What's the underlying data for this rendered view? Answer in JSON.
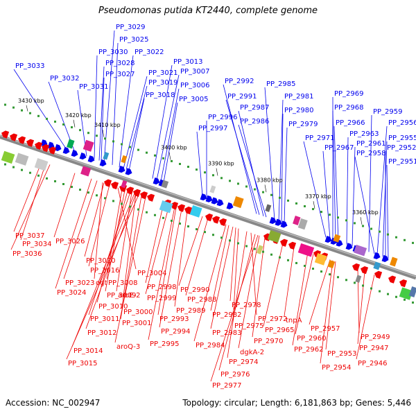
{
  "title": "Pseudomonas putida KT2440, complete genome",
  "footer": {
    "accession": "Accession: NC_002947",
    "stats": "Topology: circular; Length: 6,181,863 bp; Genes: 5,446"
  },
  "colors": {
    "forward": "#0000ee",
    "reverse": "#ee0000",
    "backbone": "#888888",
    "tick_dot": "#339933"
  },
  "kbp_ticks": [
    "3430 kbp",
    "3420 kbp",
    "3410 kbp",
    "3400 kbp",
    "3390 kbp",
    "3380 kbp",
    "3370 kbp",
    "3360 kbp"
  ],
  "forward_labels": [
    "PP_3033",
    "PP_3032",
    "PP_3031",
    "PP_3030",
    "PP_3029",
    "PP_3028",
    "PP_3027",
    "PP_3025",
    "PP_3022",
    "PP_3021",
    "PP_3019",
    "PP_3018",
    "PP_3013",
    "PP_3007",
    "PP_3006",
    "PP_3005",
    "PP_2997",
    "PP_2996",
    "PP_2992",
    "PP_2991",
    "PP_2987",
    "PP_2986",
    "PP_2985",
    "PP_2981",
    "PP_2980",
    "PP_2979",
    "PP_2971",
    "PP_2969",
    "PP_2968",
    "PP_2967",
    "PP_2966",
    "PP_2963",
    "PP_2961",
    "PP_2959",
    "PP_2958",
    "PP_2956",
    "PP_2955",
    "PP_2952",
    "PP_2951"
  ],
  "reverse_labels": [
    "PP_3037",
    "PP_3034",
    "PP_3036",
    "PP_3026",
    "PP_3020",
    "PP_3016",
    "PP_3004",
    "PP_3023",
    "ogt",
    "PP_3008",
    "PP_3024",
    "PP_3009",
    "aroE-2",
    "PP_2998",
    "PP_3010",
    "PP_2999",
    "PP_3000",
    "PP_3011",
    "PP_3001",
    "PP_3012",
    "aroQ-3",
    "PP_3014",
    "PP_3015",
    "PP_2990",
    "PP_2988",
    "PP_2989",
    "PP_2993",
    "PP_2994",
    "PP_2995",
    "PP_2978",
    "PP_2982",
    "PP_2983",
    "PP_2975",
    "PP_2984",
    "PP_2974",
    "PP_2972",
    "dgkA-2",
    "PP_2976",
    "PP_2977",
    "PP_2970",
    "PP_2965",
    "tnpA",
    "PP_2960",
    "PP_2962",
    "PP_2957",
    "PP_2953",
    "PP_2954",
    "PP_2949",
    "PP_2947",
    "PP_2946"
  ]
}
